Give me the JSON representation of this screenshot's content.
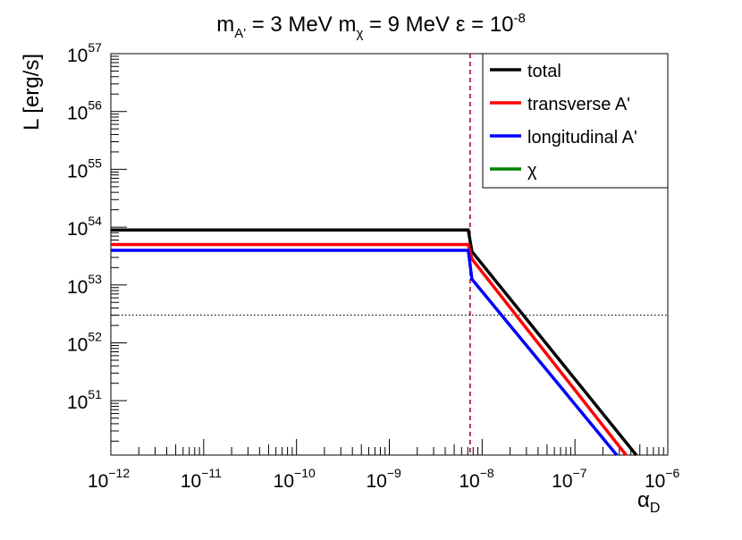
{
  "chart_data": {
    "type": "line",
    "title": {
      "m_label": "m",
      "ap_sub": "A'",
      "mid": " = 3 MeV m",
      "chi_sub": "χ",
      "eq": " = 9 MeV ε = 10",
      "exp": "-8"
    },
    "xlabel": {
      "base": "α",
      "sub": "D"
    },
    "ylabel": "L [erg/s]",
    "xscale": "log",
    "yscale": "log",
    "xlim_log10": [
      -12,
      -6
    ],
    "ylim_log10": [
      50.06,
      57
    ],
    "x_ticks": [
      {
        "exp": -12,
        "base": "10",
        "sup": "−12"
      },
      {
        "exp": -11,
        "base": "10",
        "sup": "−11"
      },
      {
        "exp": -10,
        "base": "10",
        "sup": "−10"
      },
      {
        "exp": -9,
        "base": "10",
        "sup": "−9"
      },
      {
        "exp": -8,
        "base": "10",
        "sup": "−8"
      },
      {
        "exp": -7,
        "base": "10",
        "sup": "−7"
      },
      {
        "exp": -6,
        "base": "10",
        "sup": "−6"
      }
    ],
    "y_ticks": [
      {
        "exp": 51,
        "base": "10",
        "sup": "51"
      },
      {
        "exp": 52,
        "base": "10",
        "sup": "52"
      },
      {
        "exp": 53,
        "base": "10",
        "sup": "53"
      },
      {
        "exp": 54,
        "base": "10",
        "sup": "54"
      },
      {
        "exp": 55,
        "base": "10",
        "sup": "55"
      },
      {
        "exp": 56,
        "base": "10",
        "sup": "56"
      },
      {
        "exp": 57,
        "base": "10",
        "sup": "57"
      }
    ],
    "series": [
      {
        "name": "total",
        "color": "#000000",
        "points_log10": [
          [
            -12,
            53.95
          ],
          [
            -8.15,
            53.95
          ],
          [
            -8.11,
            53.58
          ],
          [
            -6.34,
            50.06
          ]
        ]
      },
      {
        "name": "transverse A'",
        "color": "#ff0000",
        "points_log10": [
          [
            -12,
            53.7
          ],
          [
            -8.15,
            53.7
          ],
          [
            -8.11,
            53.45
          ],
          [
            -6.45,
            50.06
          ]
        ]
      },
      {
        "name": "longitudinal A'",
        "color": "#0000ff",
        "points_log10": [
          [
            -12,
            53.6
          ],
          [
            -8.15,
            53.6
          ],
          [
            -8.11,
            53.1
          ],
          [
            -6.55,
            50.06
          ]
        ]
      },
      {
        "name": "χ",
        "color": "#008000",
        "points_log10": []
      }
    ],
    "reference_lines": [
      {
        "orientation": "vertical",
        "value_log10": -8.13,
        "color": "#b00040",
        "style": "dashed"
      },
      {
        "orientation": "horizontal",
        "value_log10": 52.48,
        "color": "#000000",
        "style": "dotted"
      }
    ],
    "legend_position": "top-right"
  }
}
